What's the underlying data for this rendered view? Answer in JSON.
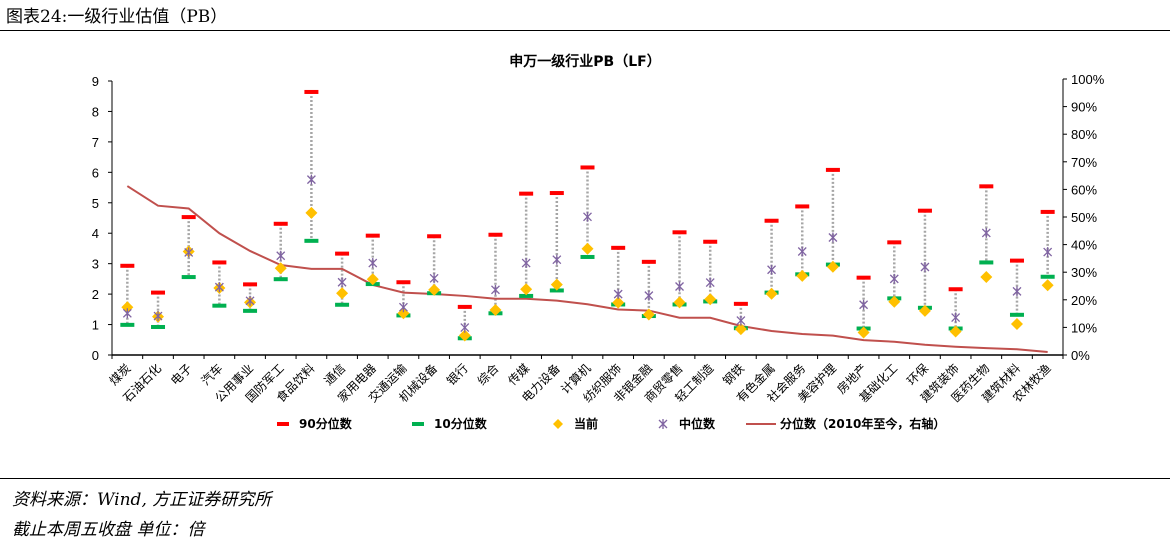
{
  "header": {
    "title": "图表24:一级行业估值（PB）"
  },
  "footer": {
    "source": "资料来源：Wind, 方正证券研究所",
    "note": "截止本周五收盘 单位：倍"
  },
  "chart_data": {
    "type": "scatter",
    "title": "申万一级行业PB（LF）",
    "categories": [
      "煤炭",
      "石油石化",
      "电子",
      "汽车",
      "公用事业",
      "国防军工",
      "食品饮料",
      "通信",
      "家用电器",
      "交通运输",
      "机械设备",
      "银行",
      "综合",
      "传媒",
      "电力设备",
      "计算机",
      "纺织服饰",
      "非银金融",
      "商贸零售",
      "轻工制造",
      "钢铁",
      "有色金属",
      "社会服务",
      "美容护理",
      "房地产",
      "基础化工",
      "环保",
      "建筑装饰",
      "医药生物",
      "建筑材料",
      "农林牧渔"
    ],
    "y_left": {
      "range": [
        0,
        9
      ],
      "ticks": [
        "0",
        "1",
        "2",
        "3",
        "4",
        "5",
        "6",
        "7",
        "8",
        "9"
      ]
    },
    "y_right": {
      "range": [
        0,
        100
      ],
      "ticks": [
        "0%",
        "10%",
        "20%",
        "30%",
        "40%",
        "50%",
        "60%",
        "70%",
        "80%",
        "90%",
        "100%"
      ]
    },
    "series": [
      {
        "name": "90分位数",
        "axis": "left",
        "marker": "dash",
        "color": "#ff0000",
        "values": [
          2.93,
          2.05,
          4.53,
          3.04,
          2.32,
          4.31,
          8.64,
          3.33,
          3.92,
          2.39,
          3.9,
          1.58,
          3.95,
          5.3,
          5.32,
          6.16,
          3.52,
          3.06,
          4.03,
          3.72,
          1.68,
          4.41,
          4.88,
          6.08,
          2.54,
          3.7,
          4.74,
          2.16,
          5.54,
          3.1,
          4.7
        ]
      },
      {
        "name": "10分位数",
        "axis": "left",
        "marker": "dash",
        "color": "#00b050",
        "values": [
          0.99,
          0.92,
          2.56,
          1.62,
          1.45,
          2.49,
          3.75,
          1.65,
          2.33,
          1.3,
          2.03,
          0.55,
          1.37,
          1.94,
          2.12,
          3.22,
          1.66,
          1.28,
          1.66,
          1.76,
          0.88,
          2.05,
          2.65,
          2.97,
          0.87,
          1.86,
          1.55,
          0.87,
          3.04,
          1.32,
          2.57
        ]
      },
      {
        "name": "当前",
        "axis": "left",
        "marker": "diamond",
        "color": "#ffc000",
        "values": [
          1.57,
          1.26,
          3.4,
          2.2,
          1.73,
          2.85,
          4.67,
          2.03,
          2.49,
          1.37,
          2.14,
          0.64,
          1.48,
          2.16,
          2.31,
          3.49,
          1.72,
          1.33,
          1.73,
          1.83,
          0.85,
          2.01,
          2.6,
          2.9,
          0.74,
          1.75,
          1.45,
          0.77,
          2.56,
          1.02,
          2.29
        ]
      },
      {
        "name": "中位数",
        "axis": "left",
        "marker": "star",
        "color": "#8064a2",
        "values": [
          1.37,
          1.28,
          3.37,
          2.23,
          1.78,
          3.26,
          5.76,
          2.39,
          3.02,
          1.57,
          2.52,
          0.9,
          2.14,
          3.02,
          3.13,
          4.54,
          2.0,
          1.95,
          2.25,
          2.38,
          1.13,
          2.8,
          3.4,
          3.86,
          1.65,
          2.5,
          2.89,
          1.23,
          4.01,
          2.09,
          3.38
        ]
      },
      {
        "name": "分位数（2010年至今，右轴）",
        "axis": "right",
        "marker": "line",
        "color": "#c0504d",
        "values": [
          61.2,
          54.1,
          53.1,
          44.1,
          37.7,
          32.6,
          31.2,
          31.2,
          25.4,
          22.6,
          22.1,
          21.4,
          20.4,
          20.4,
          19.7,
          18.4,
          16.5,
          16.1,
          13.5,
          13.5,
          10.5,
          8.7,
          7.6,
          7.0,
          5.4,
          4.8,
          3.7,
          3.0,
          2.5,
          2.1,
          1.1
        ]
      }
    ],
    "grid": false,
    "legend": "bottom"
  }
}
